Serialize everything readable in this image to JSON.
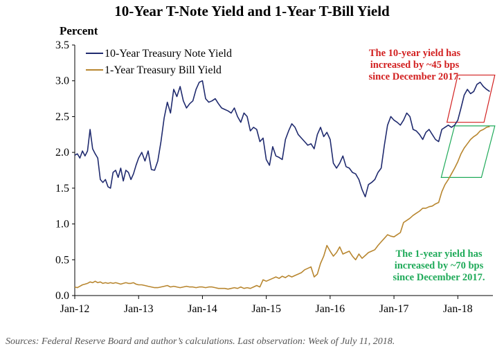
{
  "chart_data": {
    "type": "line",
    "title": "10-Year T-Note Yield and 1-Year T-Bill Yield",
    "ylabel": "Percent",
    "xlabel": "",
    "ylim": [
      0.0,
      3.5
    ],
    "yticks": [
      "0.0",
      "0.5",
      "1.0",
      "1.5",
      "2.0",
      "2.5",
      "3.0",
      "3.5"
    ],
    "xlim": [
      2012.0,
      2018.55
    ],
    "xticks": [
      {
        "x": 2012,
        "label": "Jan-12"
      },
      {
        "x": 2013,
        "label": "Jan-13"
      },
      {
        "x": 2014,
        "label": "Jan-14"
      },
      {
        "x": 2015,
        "label": "Jan-15"
      },
      {
        "x": 2016,
        "label": "Jan-16"
      },
      {
        "x": 2017,
        "label": "Jan-17"
      },
      {
        "x": 2018,
        "label": "Jan-18"
      }
    ],
    "grid": false,
    "legend_position": "top-left",
    "series": [
      {
        "name": "10-Year Treasury Note Yield",
        "color": "#1f2a6e",
        "x": [
          2012.0,
          2012.04,
          2012.08,
          2012.12,
          2012.16,
          2012.2,
          2012.24,
          2012.28,
          2012.32,
          2012.36,
          2012.4,
          2012.44,
          2012.48,
          2012.52,
          2012.56,
          2012.6,
          2012.64,
          2012.68,
          2012.72,
          2012.76,
          2012.8,
          2012.84,
          2012.88,
          2012.92,
          2012.96,
          2013.0,
          2013.05,
          2013.1,
          2013.15,
          2013.2,
          2013.25,
          2013.3,
          2013.35,
          2013.4,
          2013.45,
          2013.5,
          2013.55,
          2013.6,
          2013.65,
          2013.7,
          2013.75,
          2013.8,
          2013.85,
          2013.9,
          2013.95,
          2014.0,
          2014.05,
          2014.1,
          2014.15,
          2014.2,
          2014.25,
          2014.3,
          2014.35,
          2014.4,
          2014.45,
          2014.5,
          2014.55,
          2014.6,
          2014.65,
          2014.7,
          2014.75,
          2014.8,
          2014.85,
          2014.9,
          2014.95,
          2015.0,
          2015.05,
          2015.1,
          2015.15,
          2015.2,
          2015.25,
          2015.3,
          2015.35,
          2015.4,
          2015.45,
          2015.5,
          2015.55,
          2015.6,
          2015.65,
          2015.7,
          2015.75,
          2015.8,
          2015.85,
          2015.9,
          2015.95,
          2016.0,
          2016.05,
          2016.1,
          2016.15,
          2016.2,
          2016.25,
          2016.3,
          2016.35,
          2016.4,
          2016.45,
          2016.5,
          2016.55,
          2016.6,
          2016.65,
          2016.7,
          2016.75,
          2016.8,
          2016.85,
          2016.9,
          2016.95,
          2017.0,
          2017.05,
          2017.1,
          2017.15,
          2017.2,
          2017.25,
          2017.3,
          2017.35,
          2017.4,
          2017.45,
          2017.5,
          2017.55,
          2017.6,
          2017.65,
          2017.7,
          2017.75,
          2017.8,
          2017.85,
          2017.9,
          2017.95,
          2018.0,
          2018.05,
          2018.1,
          2018.15,
          2018.2,
          2018.25,
          2018.3,
          2018.35,
          2018.4,
          2018.45,
          2018.5
        ],
        "values": [
          1.96,
          1.98,
          1.92,
          2.02,
          1.95,
          2.02,
          2.32,
          2.05,
          1.98,
          1.92,
          1.62,
          1.58,
          1.62,
          1.52,
          1.5,
          1.72,
          1.75,
          1.65,
          1.78,
          1.6,
          1.75,
          1.72,
          1.62,
          1.7,
          1.82,
          1.92,
          2.0,
          1.88,
          2.02,
          1.76,
          1.75,
          1.88,
          2.15,
          2.48,
          2.7,
          2.55,
          2.88,
          2.78,
          2.92,
          2.72,
          2.62,
          2.68,
          2.72,
          2.88,
          2.98,
          3.0,
          2.75,
          2.7,
          2.72,
          2.75,
          2.68,
          2.62,
          2.6,
          2.58,
          2.55,
          2.62,
          2.5,
          2.42,
          2.55,
          2.5,
          2.3,
          2.35,
          2.32,
          2.15,
          2.2,
          1.9,
          1.82,
          2.08,
          1.95,
          1.93,
          1.9,
          2.18,
          2.3,
          2.4,
          2.35,
          2.25,
          2.2,
          2.15,
          2.1,
          2.12,
          2.05,
          2.25,
          2.35,
          2.22,
          2.28,
          2.18,
          1.85,
          1.78,
          1.85,
          1.95,
          1.8,
          1.78,
          1.72,
          1.7,
          1.62,
          1.48,
          1.38,
          1.55,
          1.58,
          1.62,
          1.72,
          1.78,
          2.1,
          2.38,
          2.5,
          2.45,
          2.42,
          2.38,
          2.45,
          2.55,
          2.5,
          2.32,
          2.3,
          2.25,
          2.18,
          2.28,
          2.32,
          2.25,
          2.18,
          2.15,
          2.32,
          2.35,
          2.38,
          2.35,
          2.38,
          2.45,
          2.62,
          2.8,
          2.88,
          2.82,
          2.85,
          2.95,
          2.98,
          2.92,
          2.88,
          2.85
        ]
      },
      {
        "name": "1-Year Treasury Bill Yield",
        "color": "#b8862f",
        "x": [
          2012.0,
          2012.04,
          2012.08,
          2012.12,
          2012.16,
          2012.2,
          2012.24,
          2012.28,
          2012.32,
          2012.36,
          2012.4,
          2012.44,
          2012.48,
          2012.52,
          2012.56,
          2012.6,
          2012.64,
          2012.68,
          2012.72,
          2012.76,
          2012.8,
          2012.84,
          2012.88,
          2012.92,
          2012.96,
          2013.0,
          2013.05,
          2013.1,
          2013.15,
          2013.2,
          2013.25,
          2013.3,
          2013.35,
          2013.4,
          2013.45,
          2013.5,
          2013.55,
          2013.6,
          2013.65,
          2013.7,
          2013.75,
          2013.8,
          2013.85,
          2013.9,
          2013.95,
          2014.0,
          2014.05,
          2014.1,
          2014.15,
          2014.2,
          2014.25,
          2014.3,
          2014.35,
          2014.4,
          2014.45,
          2014.5,
          2014.55,
          2014.6,
          2014.65,
          2014.7,
          2014.75,
          2014.8,
          2014.85,
          2014.9,
          2014.95,
          2015.0,
          2015.05,
          2015.1,
          2015.15,
          2015.2,
          2015.25,
          2015.3,
          2015.35,
          2015.4,
          2015.45,
          2015.5,
          2015.55,
          2015.6,
          2015.65,
          2015.7,
          2015.75,
          2015.8,
          2015.85,
          2015.9,
          2015.95,
          2016.0,
          2016.05,
          2016.1,
          2016.15,
          2016.2,
          2016.25,
          2016.3,
          2016.35,
          2016.4,
          2016.45,
          2016.5,
          2016.55,
          2016.6,
          2016.65,
          2016.7,
          2016.75,
          2016.8,
          2016.85,
          2016.9,
          2016.95,
          2017.0,
          2017.05,
          2017.1,
          2017.15,
          2017.2,
          2017.25,
          2017.3,
          2017.35,
          2017.4,
          2017.45,
          2017.5,
          2017.55,
          2017.6,
          2017.65,
          2017.7,
          2017.75,
          2017.8,
          2017.85,
          2017.9,
          2017.95,
          2018.0,
          2018.05,
          2018.1,
          2018.15,
          2018.2,
          2018.25,
          2018.3,
          2018.35,
          2018.4,
          2018.45,
          2018.5
        ],
        "values": [
          0.12,
          0.11,
          0.13,
          0.15,
          0.16,
          0.17,
          0.19,
          0.18,
          0.2,
          0.18,
          0.19,
          0.17,
          0.18,
          0.17,
          0.18,
          0.17,
          0.18,
          0.17,
          0.16,
          0.17,
          0.18,
          0.17,
          0.17,
          0.18,
          0.16,
          0.15,
          0.15,
          0.14,
          0.13,
          0.12,
          0.11,
          0.11,
          0.12,
          0.13,
          0.14,
          0.12,
          0.13,
          0.12,
          0.11,
          0.12,
          0.13,
          0.12,
          0.12,
          0.11,
          0.12,
          0.12,
          0.11,
          0.12,
          0.12,
          0.11,
          0.1,
          0.1,
          0.1,
          0.09,
          0.1,
          0.11,
          0.1,
          0.12,
          0.1,
          0.11,
          0.1,
          0.12,
          0.14,
          0.12,
          0.22,
          0.2,
          0.22,
          0.24,
          0.26,
          0.24,
          0.27,
          0.25,
          0.28,
          0.26,
          0.28,
          0.3,
          0.32,
          0.36,
          0.38,
          0.4,
          0.26,
          0.3,
          0.45,
          0.55,
          0.7,
          0.62,
          0.55,
          0.6,
          0.68,
          0.58,
          0.6,
          0.62,
          0.55,
          0.5,
          0.58,
          0.52,
          0.56,
          0.6,
          0.62,
          0.64,
          0.7,
          0.75,
          0.8,
          0.85,
          0.83,
          0.82,
          0.85,
          0.88,
          1.02,
          1.05,
          1.08,
          1.12,
          1.15,
          1.18,
          1.22,
          1.22,
          1.24,
          1.25,
          1.28,
          1.3,
          1.45,
          1.55,
          1.62,
          1.7,
          1.78,
          1.87,
          1.98,
          2.06,
          2.12,
          2.18,
          2.22,
          2.25,
          2.3,
          2.32,
          2.35,
          2.36
        ]
      }
    ],
    "annotations": [
      {
        "lines": [
          "The 10-year yield has",
          "increased by ~45 bps",
          "since December 2017."
        ],
        "color": "#d21f1f"
      },
      {
        "lines": [
          "The 1-year yield has",
          "increased by ~70 bps",
          "since December 2017."
        ],
        "color": "#1faa59"
      }
    ]
  },
  "source_note": "Sources: Federal Reserve Board and author’s calculations. Last observation: Week of July 11, 2018."
}
